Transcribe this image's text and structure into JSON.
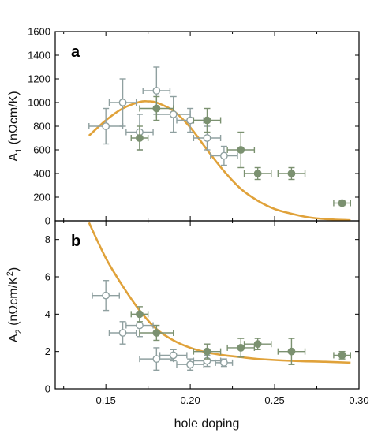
{
  "chart_data": [
    {
      "type": "scatter",
      "panel_label": "a",
      "ylabel": "A",
      "ylabel_sub": "1",
      "ylabel_unit": " (nΩcm/K)",
      "xlim": [
        0.12,
        0.3
      ],
      "ylim": [
        0,
        1600
      ],
      "xticks": [
        0.15,
        0.2,
        0.25,
        0.3
      ],
      "yticks": [
        0,
        200,
        400,
        600,
        800,
        1000,
        1200,
        1400,
        1600
      ],
      "grid": false,
      "colors": {
        "open": "#8fa0a0",
        "filled": "#7b9170",
        "fit": "#e0a23a"
      },
      "series": [
        {
          "style": "open",
          "points": [
            {
              "x": 0.15,
              "y": 800,
              "xerr": 0.01,
              "yerr": 150
            },
            {
              "x": 0.16,
              "y": 1000,
              "xerr": 0.008,
              "yerr": 200
            },
            {
              "x": 0.17,
              "y": 750,
              "xerr": 0.008,
              "yerr": 150
            },
            {
              "x": 0.18,
              "y": 1100,
              "xerr": 0.008,
              "yerr": 200
            },
            {
              "x": 0.19,
              "y": 900,
              "xerr": 0.01,
              "yerr": 150
            },
            {
              "x": 0.2,
              "y": 850,
              "xerr": 0.008,
              "yerr": 100
            },
            {
              "x": 0.21,
              "y": 700,
              "xerr": 0.008,
              "yerr": 100
            },
            {
              "x": 0.22,
              "y": 550,
              "xerr": 0.008,
              "yerr": 80
            }
          ]
        },
        {
          "style": "filled",
          "points": [
            {
              "x": 0.17,
              "y": 700,
              "xerr": 0.005,
              "yerr": 100
            },
            {
              "x": 0.18,
              "y": 950,
              "xerr": 0.01,
              "yerr": 100
            },
            {
              "x": 0.21,
              "y": 850,
              "xerr": 0.008,
              "yerr": 100
            },
            {
              "x": 0.23,
              "y": 600,
              "xerr": 0.008,
              "yerr": 150
            },
            {
              "x": 0.24,
              "y": 400,
              "xerr": 0.008,
              "yerr": 50
            },
            {
              "x": 0.26,
              "y": 400,
              "xerr": 0.008,
              "yerr": 50
            },
            {
              "x": 0.29,
              "y": 150,
              "xerr": 0.005,
              "yerr": 20
            }
          ]
        },
        {
          "style": "fit",
          "x": [
            0.14,
            0.15,
            0.16,
            0.17,
            0.175,
            0.18,
            0.19,
            0.2,
            0.21,
            0.22,
            0.23,
            0.24,
            0.25,
            0.26,
            0.27,
            0.28,
            0.295
          ],
          "y": [
            720,
            850,
            950,
            1005,
            1010,
            1000,
            930,
            790,
            600,
            420,
            270,
            170,
            100,
            60,
            30,
            15,
            5
          ]
        }
      ]
    },
    {
      "type": "scatter",
      "panel_label": "b",
      "ylabel": "A",
      "ylabel_sub": "2",
      "ylabel_unit_pre": " (nΩcm/K",
      "ylabel_sup": "2",
      "ylabel_unit_post": ")",
      "xlabel": "hole doping",
      "xlim": [
        0.12,
        0.3
      ],
      "ylim": [
        0,
        9
      ],
      "xticks": [
        0.15,
        0.2,
        0.25,
        0.3
      ],
      "xtick_labels": [
        "0.15",
        "0.20",
        "0.25",
        "0.30"
      ],
      "yticks": [
        0,
        2,
        4,
        6,
        8
      ],
      "grid": false,
      "colors": {
        "open": "#8fa0a0",
        "filled": "#7b9170",
        "fit": "#e0a23a"
      },
      "series": [
        {
          "style": "open",
          "points": [
            {
              "x": 0.15,
              "y": 5.0,
              "xerr": 0.008,
              "yerr": 0.8
            },
            {
              "x": 0.16,
              "y": 3.0,
              "xerr": 0.008,
              "yerr": 0.6
            },
            {
              "x": 0.17,
              "y": 3.4,
              "xerr": 0.008,
              "yerr": 0.6
            },
            {
              "x": 0.18,
              "y": 1.6,
              "xerr": 0.01,
              "yerr": 0.6
            },
            {
              "x": 0.19,
              "y": 1.8,
              "xerr": 0.008,
              "yerr": 0.3
            },
            {
              "x": 0.2,
              "y": 1.3,
              "xerr": 0.008,
              "yerr": 0.3
            },
            {
              "x": 0.21,
              "y": 1.5,
              "xerr": 0.008,
              "yerr": 0.3
            },
            {
              "x": 0.22,
              "y": 1.4,
              "xerr": 0.005,
              "yerr": 0.2
            }
          ]
        },
        {
          "style": "filled",
          "points": [
            {
              "x": 0.17,
              "y": 4.0,
              "xerr": 0.005,
              "yerr": 0.4
            },
            {
              "x": 0.18,
              "y": 3.0,
              "xerr": 0.01,
              "yerr": 0.4
            },
            {
              "x": 0.21,
              "y": 2.0,
              "xerr": 0.008,
              "yerr": 0.4
            },
            {
              "x": 0.23,
              "y": 2.2,
              "xerr": 0.008,
              "yerr": 0.5
            },
            {
              "x": 0.24,
              "y": 2.4,
              "xerr": 0.008,
              "yerr": 0.3
            },
            {
              "x": 0.26,
              "y": 2.0,
              "xerr": 0.008,
              "yerr": 0.7
            },
            {
              "x": 0.29,
              "y": 1.8,
              "xerr": 0.005,
              "yerr": 0.2
            }
          ]
        },
        {
          "style": "fit",
          "x": [
            0.14,
            0.15,
            0.16,
            0.17,
            0.18,
            0.19,
            0.2,
            0.21,
            0.22,
            0.23,
            0.24,
            0.26,
            0.28,
            0.295
          ],
          "y": [
            8.9,
            7.0,
            5.5,
            4.2,
            3.2,
            2.6,
            2.2,
            1.95,
            1.8,
            1.7,
            1.6,
            1.5,
            1.45,
            1.4
          ]
        }
      ]
    }
  ]
}
